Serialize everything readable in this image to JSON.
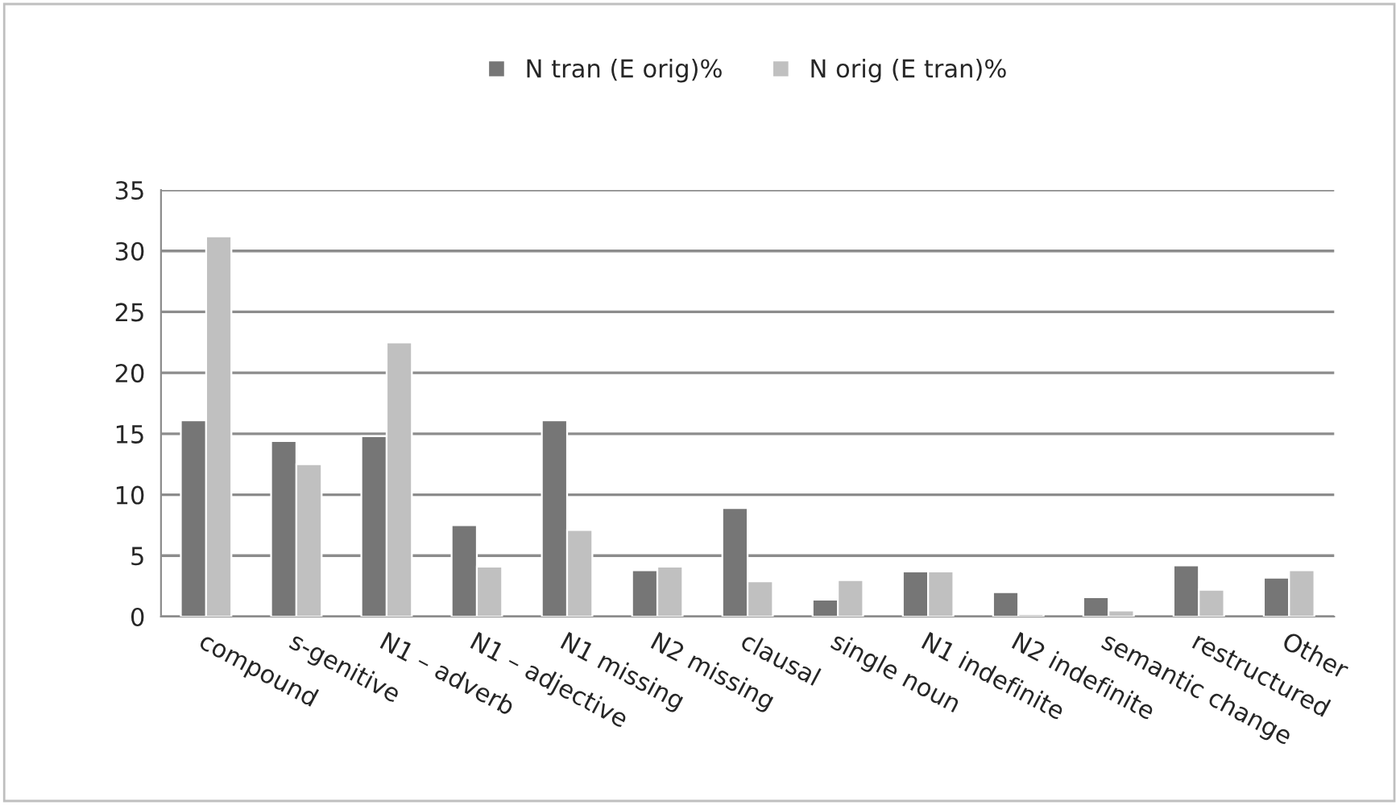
{
  "chart_data": {
    "type": "bar",
    "categories": [
      "compound",
      "s-genitive",
      "N1 – adverb",
      "N1 – adjective",
      "N1 missing",
      "N2 missing",
      "clausal",
      "single noun",
      "N1 indefinite",
      "N2 indefinite",
      "semantic change",
      "restructured",
      "Other"
    ],
    "series": [
      {
        "name": "N tran (E orig)%",
        "color": "#767676",
        "values": [
          16.1,
          14.4,
          14.8,
          7.5,
          16.1,
          3.8,
          8.9,
          1.4,
          3.7,
          2.0,
          1.6,
          4.2,
          3.2
        ]
      },
      {
        "name": "N orig (E tran)%",
        "color": "#c0c0c0",
        "values": [
          31.2,
          12.5,
          22.5,
          4.1,
          7.1,
          4.1,
          2.9,
          3.0,
          3.7,
          0.2,
          0.5,
          2.2,
          3.8
        ]
      }
    ],
    "ylim": [
      0,
      35
    ],
    "yticks": [
      0,
      5,
      10,
      15,
      20,
      25,
      30,
      35
    ],
    "grid": "y",
    "legend": "top"
  }
}
